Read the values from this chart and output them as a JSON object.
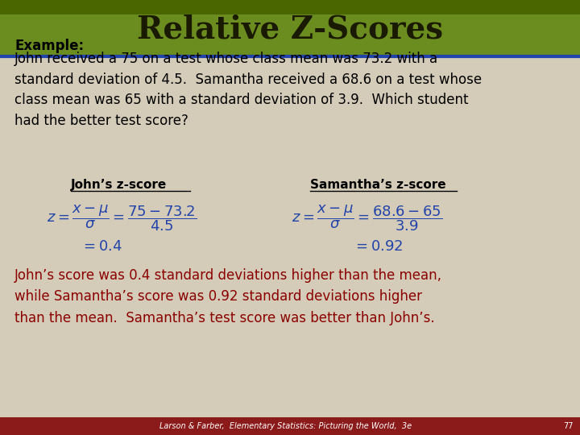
{
  "title": "Relative Z-Scores",
  "title_bg_color": "#6b8c1e",
  "title_bg_color2": "#4a6600",
  "title_text_color": "#1a1a00",
  "body_bg_color": "#d4ccb8",
  "header_line_color": "#2244aa",
  "footer_bg_color": "#8b1a1a",
  "footer_text": "Larson & Farber,  Elementary Statistics: Picturing the World,  3e",
  "footer_page": "77",
  "example_label": "Example:",
  "example_text": "John received a 75 on a test whose class mean was 73.2 with a\nstandard deviation of 4.5.  Samantha received a 68.6 on a test whose\nclass mean was 65 with a standard deviation of 3.9.  Which student\nhad the better test score?",
  "john_label": "John’s z-score",
  "samantha_label": "Samantha’s z-score",
  "conclusion_text": "John’s score was 0.4 standard deviations higher than the mean,\nwhile Samantha’s score was 0.92 standard deviations higher\nthan the mean.  Samantha’s test score was better than John’s.",
  "conclusion_color": "#8b0000",
  "formula_color": "#2244aa",
  "label_color": "#000000",
  "body_text_color": "#000000"
}
